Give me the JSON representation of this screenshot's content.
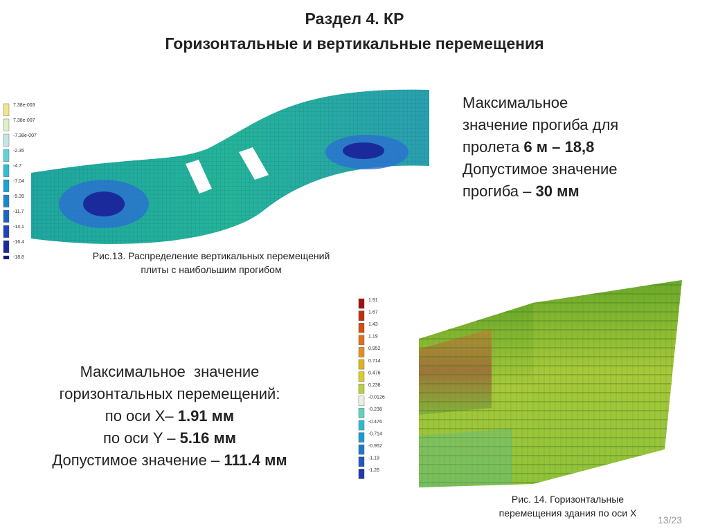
{
  "header": {
    "title_lines": [
      "Раздел 4. КР",
      "Горизонтальные и вертикальные перемещения"
    ]
  },
  "text_blocks": [
    {
      "lines": [
        [
          {
            "text": "Максимальное"
          }
        ],
        [
          {
            "text": "значение прогиба для"
          }
        ],
        [
          {
            "text": "пролета "
          },
          {
            "text": "6 м – 18,8",
            "bold": true
          }
        ],
        [
          {
            "text": "Допустимое значение"
          }
        ],
        [
          {
            "text": "прогиба – "
          },
          {
            "text": "30 мм",
            "bold": true
          }
        ]
      ]
    },
    {
      "lines": [
        [
          {
            "text": "Максимальное  значение"
          }
        ],
        [
          {
            "text": "горизонтальных перемещений:"
          }
        ],
        [
          {
            "text": "по оси X– "
          },
          {
            "text": "1.91 мм",
            "bold": true
          }
        ],
        [
          {
            "text": "по оси Y – "
          },
          {
            "text": "5.16 мм",
            "bold": true
          }
        ],
        [
          {
            "text": "Допустимое значение – "
          },
          {
            "text": "111.4 мм",
            "bold": true
          }
        ]
      ]
    }
  ],
  "figures": [
    {
      "caption_lines": [
        "Рис.13. Распределение вертикальных перемещений",
        "плиты с наибольшим прогибом"
      ],
      "legend": [
        "7.38e-003",
        "7.38e-007",
        "-7.38e-007",
        "-2.35",
        "-4.7",
        "-7.04",
        "-9.39",
        "-11.7",
        "-14.1",
        "-16.4",
        "-18.8"
      ]
    },
    {
      "caption_lines": [
        "Рис. 14. Горизонтальные",
        "перемещения здания по оси X"
      ],
      "legend": [
        "1.91",
        "1.67",
        "1.43",
        "1.19",
        "0.952",
        "0.714",
        "0.476",
        "0.238",
        "-0.0126",
        "-0.238",
        "-0.476",
        "-0.714",
        "-0.952",
        "-1.19",
        "-1.26"
      ]
    }
  ],
  "footer": {
    "page_number": "13/23"
  }
}
